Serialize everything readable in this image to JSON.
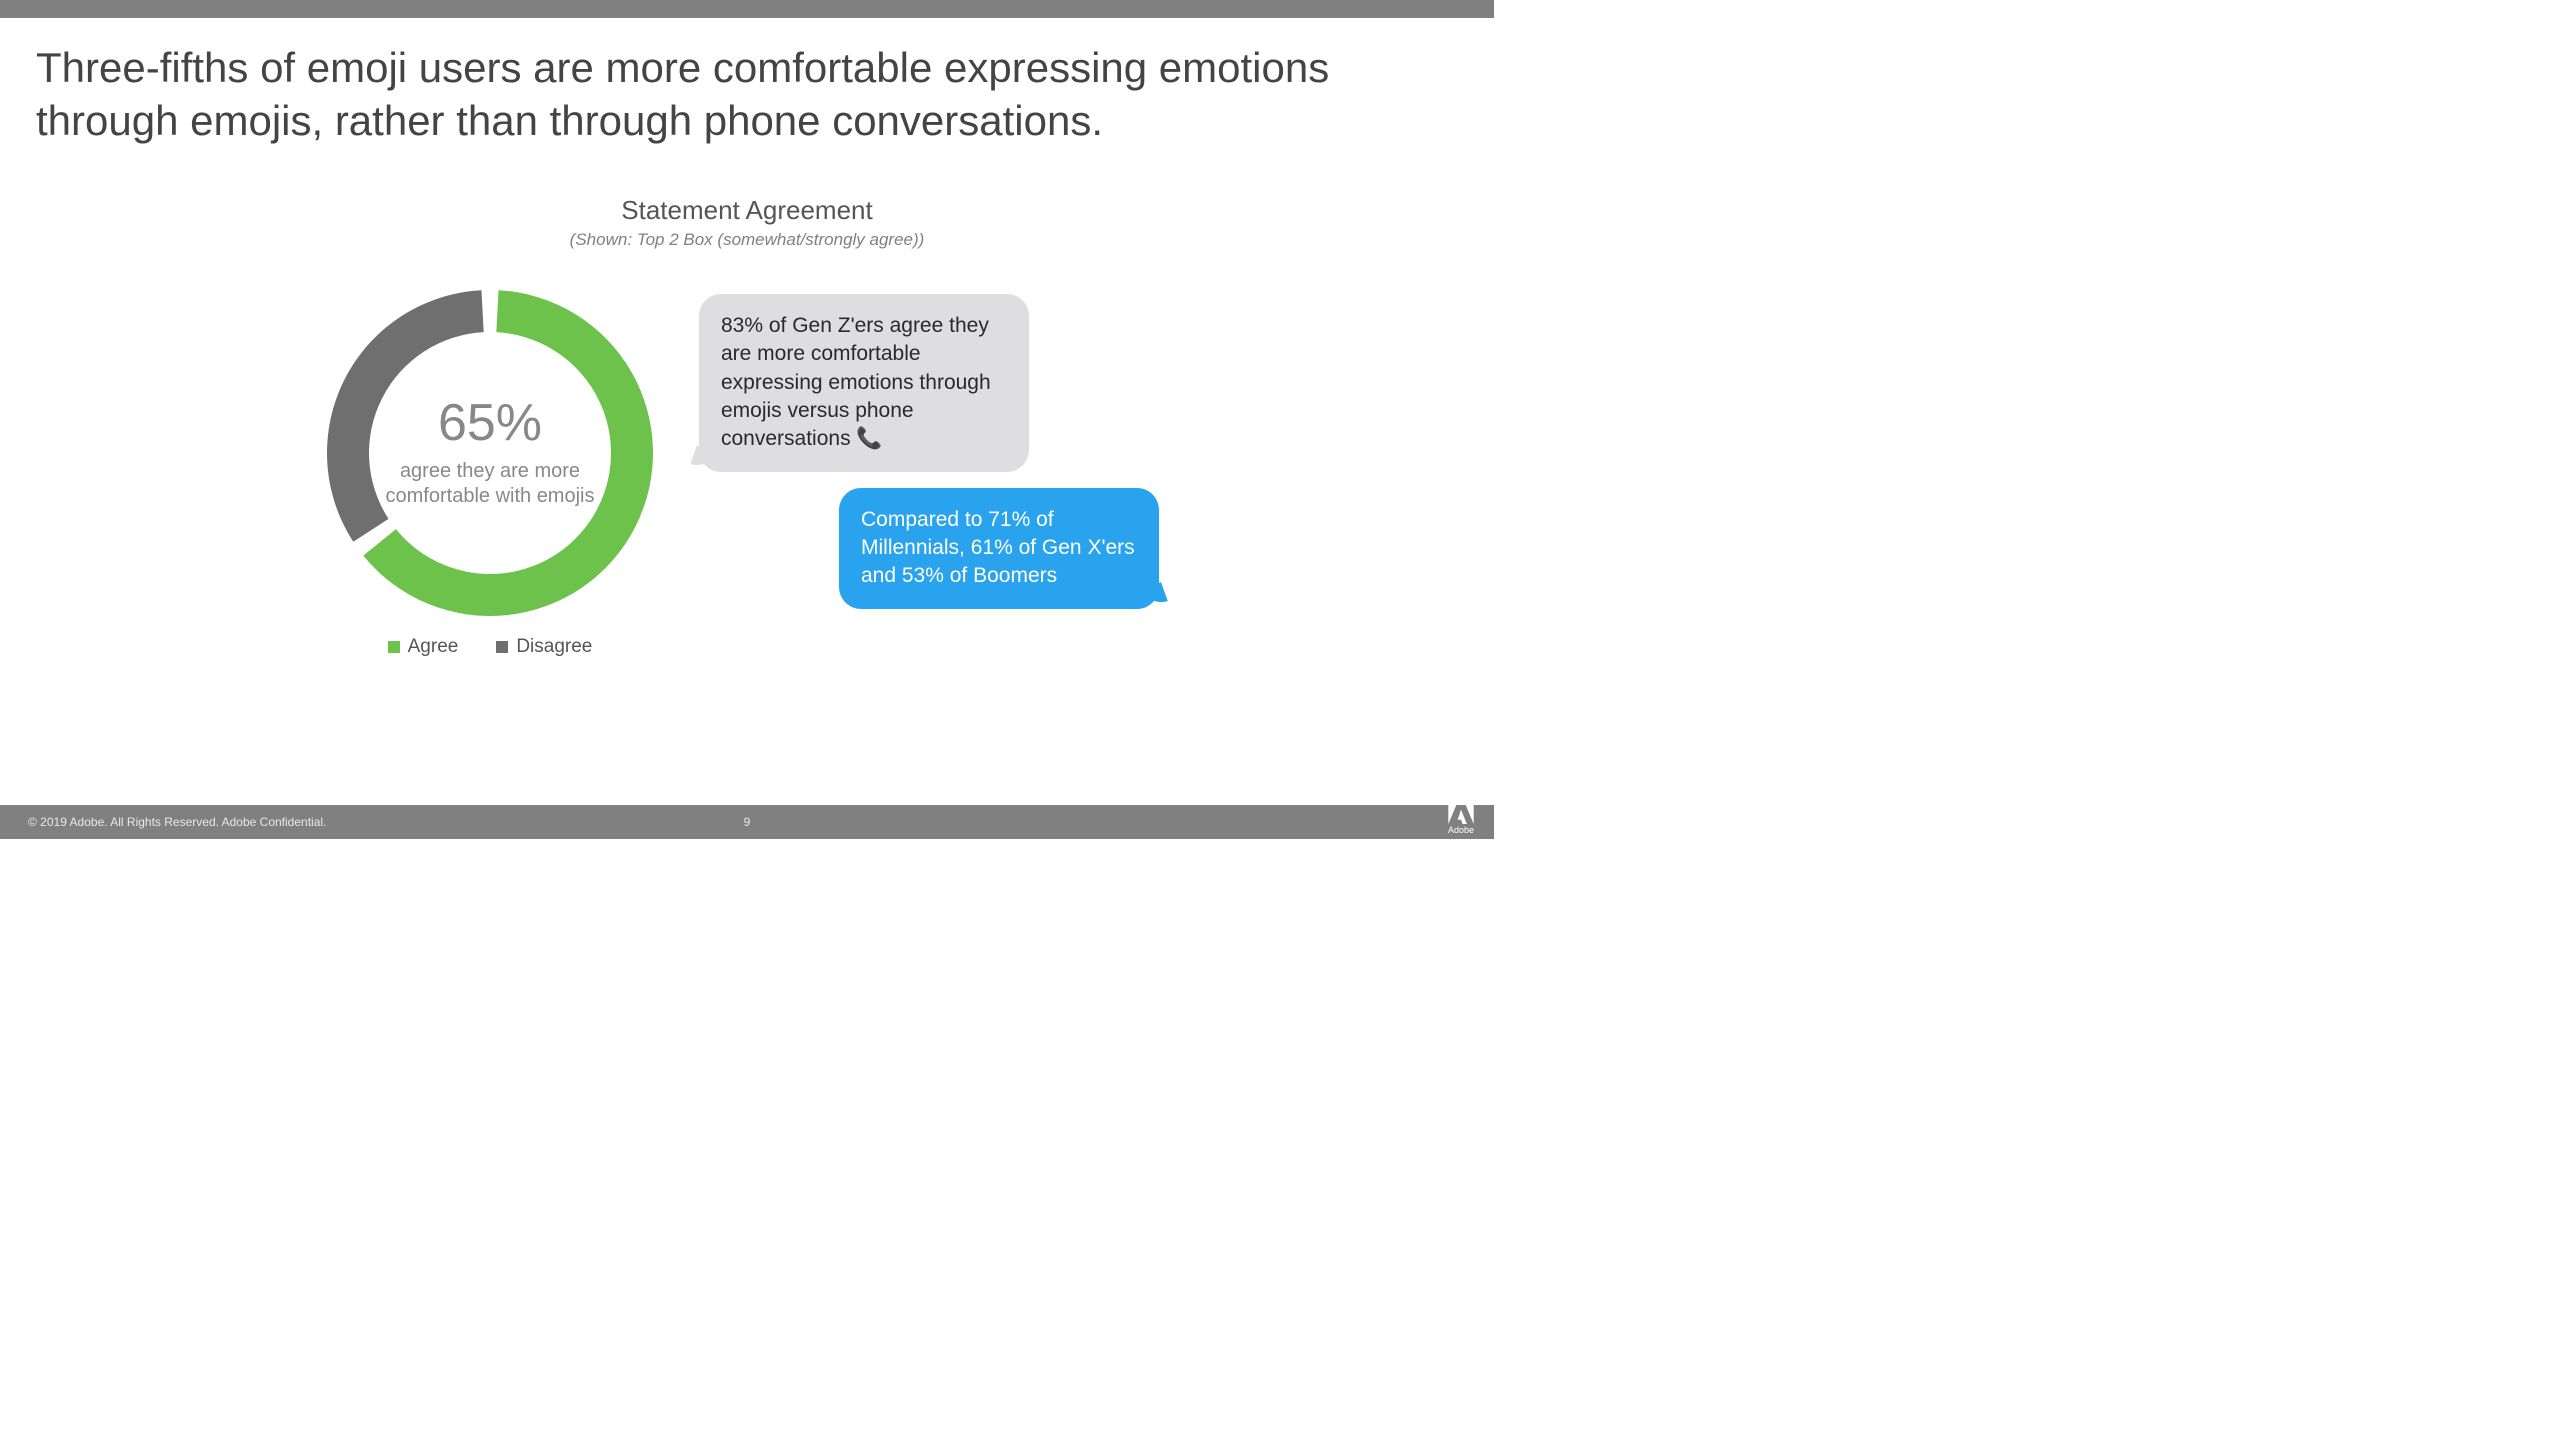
{
  "headline": "Three-fifths of emoji users are more comfortable expressing emotions through emojis, rather than through phone conversations.",
  "section": {
    "title": "Statement Agreement",
    "subtitle": "(Shown: Top 2 Box (somewhat/strongly agree))"
  },
  "donut": {
    "type": "donut",
    "agree_pct": 65,
    "disagree_pct": 35,
    "center_value": "65%",
    "center_label": "agree they are more comfortable with emojis",
    "colors": {
      "agree": "#6cc24a",
      "disagree": "#6f6f6f",
      "background": "#ffffff"
    },
    "ring_thickness": 42,
    "outer_radius": 165,
    "gap_deg": 6,
    "start_angle_deg": -90,
    "center_value_fontsize": 52,
    "center_label_fontsize": 20,
    "center_text_color": "#888888"
  },
  "legend": {
    "items": [
      {
        "label": "Agree",
        "color": "#6cc24a"
      },
      {
        "label": "Disagree",
        "color": "#6f6f6f"
      }
    ],
    "fontsize": 19
  },
  "bubbles": {
    "grey": {
      "text": "83% of Gen Z'ers agree they are more comfortable expressing emotions through emojis versus phone conversations 📞",
      "bg": "#dedee0",
      "fg": "#2a2a2a"
    },
    "blue": {
      "text": "Compared to 71% of Millennials, 61% of Gen X'ers and 53% of Boomers",
      "bg": "#2aa3ef",
      "fg": "#ffffff"
    }
  },
  "footer": {
    "copyright": "© 2019 Adobe.  All Rights Reserved.  Adobe Confidential.",
    "page": "9",
    "brand": "Adobe",
    "bar_color": "#808080"
  }
}
